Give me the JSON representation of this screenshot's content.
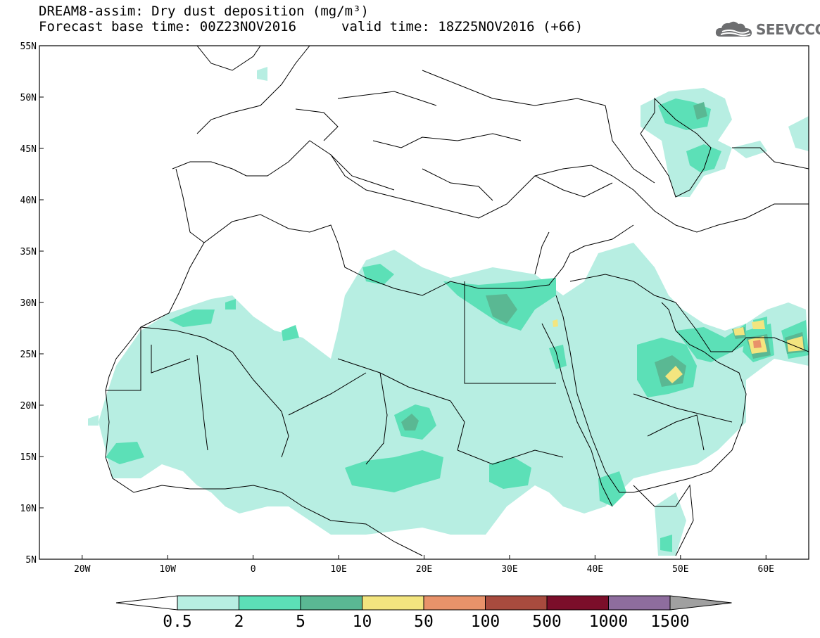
{
  "title": {
    "line1": "DREAM8-assim: Dry dust deposition (mg/m³)",
    "line2_left": "Forecast base time: 00Z23NOV2016",
    "line2_right": "valid time: 18Z25NOV2016 (+66)"
  },
  "logo": {
    "text": "SEEVCCC",
    "icon": "cloud-logo-icon"
  },
  "axes": {
    "lat_ticks": [
      "55N",
      "50N",
      "45N",
      "40N",
      "35N",
      "30N",
      "25N",
      "20N",
      "15N",
      "10N",
      "5N"
    ],
    "lon_ticks": [
      "20W",
      "10W",
      "0",
      "10E",
      "20E",
      "30E",
      "40E",
      "50E",
      "60E"
    ],
    "lon_range": [
      -25,
      65
    ],
    "lat_range": [
      5,
      55
    ]
  },
  "colorbar": {
    "labels": [
      "0.5",
      "2",
      "5",
      "10",
      "50",
      "100",
      "500",
      "1000",
      "1500"
    ],
    "colors": [
      "#b7eee2",
      "#5ce0b7",
      "#5ab893",
      "#f3e57f",
      "#e8926a",
      "#a84b3e",
      "#7b0e2a",
      "#8e6d9e",
      "#a0a0a0"
    ]
  }
}
